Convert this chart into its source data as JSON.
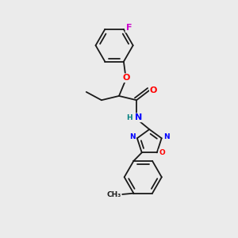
{
  "bg_color": "#ebebeb",
  "bond_color": "#1a1a1a",
  "atom_colors": {
    "F": "#cc00cc",
    "O": "#ff0000",
    "N": "#0000ff",
    "H": "#008080",
    "C": "#1a1a1a"
  },
  "font_size_atom": 8.0,
  "font_size_small": 6.5
}
